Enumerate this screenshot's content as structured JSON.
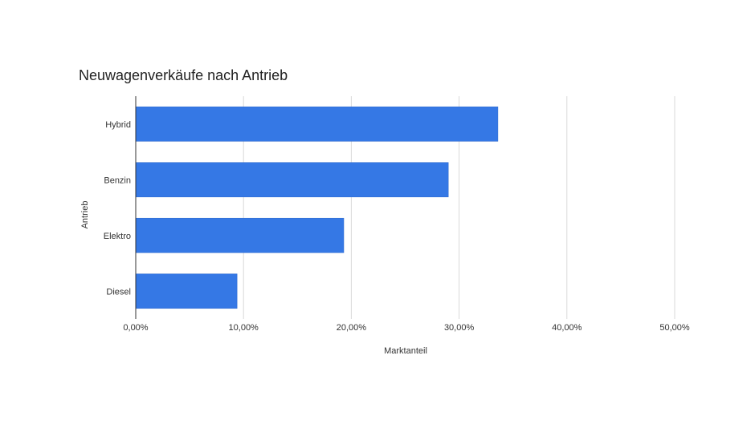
{
  "chart_data": {
    "type": "bar",
    "orientation": "horizontal",
    "title": "Neuwagenverkäufe nach Antrieb",
    "xlabel": "Marktanteil",
    "ylabel": "Antrieb",
    "categories": [
      "Hybrid",
      "Benzin",
      "Elektro",
      "Diesel"
    ],
    "values": [
      33.6,
      29.0,
      19.3,
      9.4
    ],
    "xlim": [
      0,
      50
    ],
    "x_ticks": [
      0,
      10,
      20,
      30,
      40,
      50
    ],
    "x_tick_labels": [
      "0,00%",
      "10,00%",
      "20,00%",
      "30,00%",
      "40,00%",
      "50,00%"
    ],
    "grid": true,
    "legend": "none",
    "bar_color": "#3578e5",
    "grid_color": "#d9d9d9",
    "axis_color": "#333333"
  }
}
